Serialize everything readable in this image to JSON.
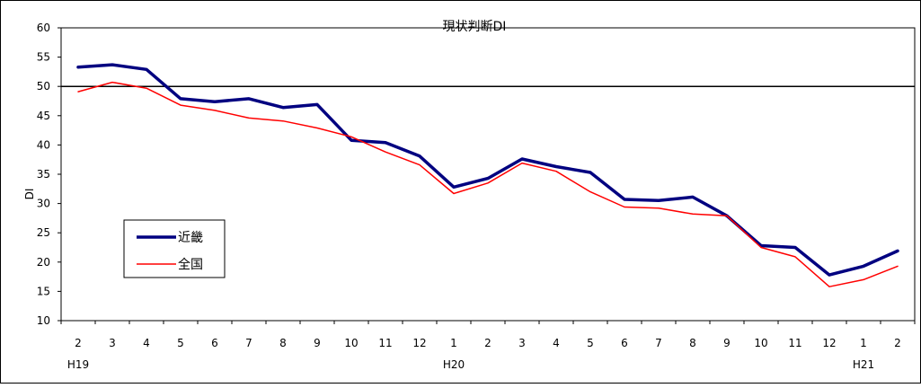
{
  "chart_data": {
    "type": "line",
    "title": "現状判断DI",
    "ylabel": "DI",
    "xlabel": "",
    "ylim": [
      10,
      60
    ],
    "yticks": [
      10,
      15,
      20,
      25,
      30,
      35,
      40,
      45,
      50,
      55,
      60
    ],
    "categories": [
      "2",
      "3",
      "4",
      "5",
      "6",
      "7",
      "8",
      "9",
      "10",
      "11",
      "12",
      "1",
      "2",
      "3",
      "4",
      "5",
      "6",
      "7",
      "8",
      "9",
      "10",
      "11",
      "12",
      "1",
      "2"
    ],
    "year_labels": [
      {
        "index": 0,
        "label": "H19"
      },
      {
        "index": 11,
        "label": "H20"
      },
      {
        "index": 23,
        "label": "H21"
      }
    ],
    "reference_line": 50,
    "grid": false,
    "legend_position": "left",
    "series": [
      {
        "name": "近畿",
        "color": "#000080",
        "values": [
          53.3,
          53.7,
          52.9,
          47.9,
          47.4,
          47.9,
          46.4,
          46.9,
          40.8,
          40.4,
          38.1,
          32.8,
          34.3,
          37.6,
          36.3,
          35.3,
          30.7,
          30.5,
          31.1,
          27.9,
          22.8,
          22.5,
          17.8,
          19.3,
          21.9
        ]
      },
      {
        "name": "全国",
        "color": "#ff0000",
        "values": [
          49.1,
          50.7,
          49.7,
          46.8,
          45.9,
          44.6,
          44.1,
          42.9,
          41.4,
          38.8,
          36.6,
          31.7,
          33.5,
          36.9,
          35.5,
          32.0,
          29.4,
          29.2,
          28.2,
          27.9,
          22.5,
          20.9,
          15.8,
          17.0,
          19.3
        ]
      }
    ]
  }
}
